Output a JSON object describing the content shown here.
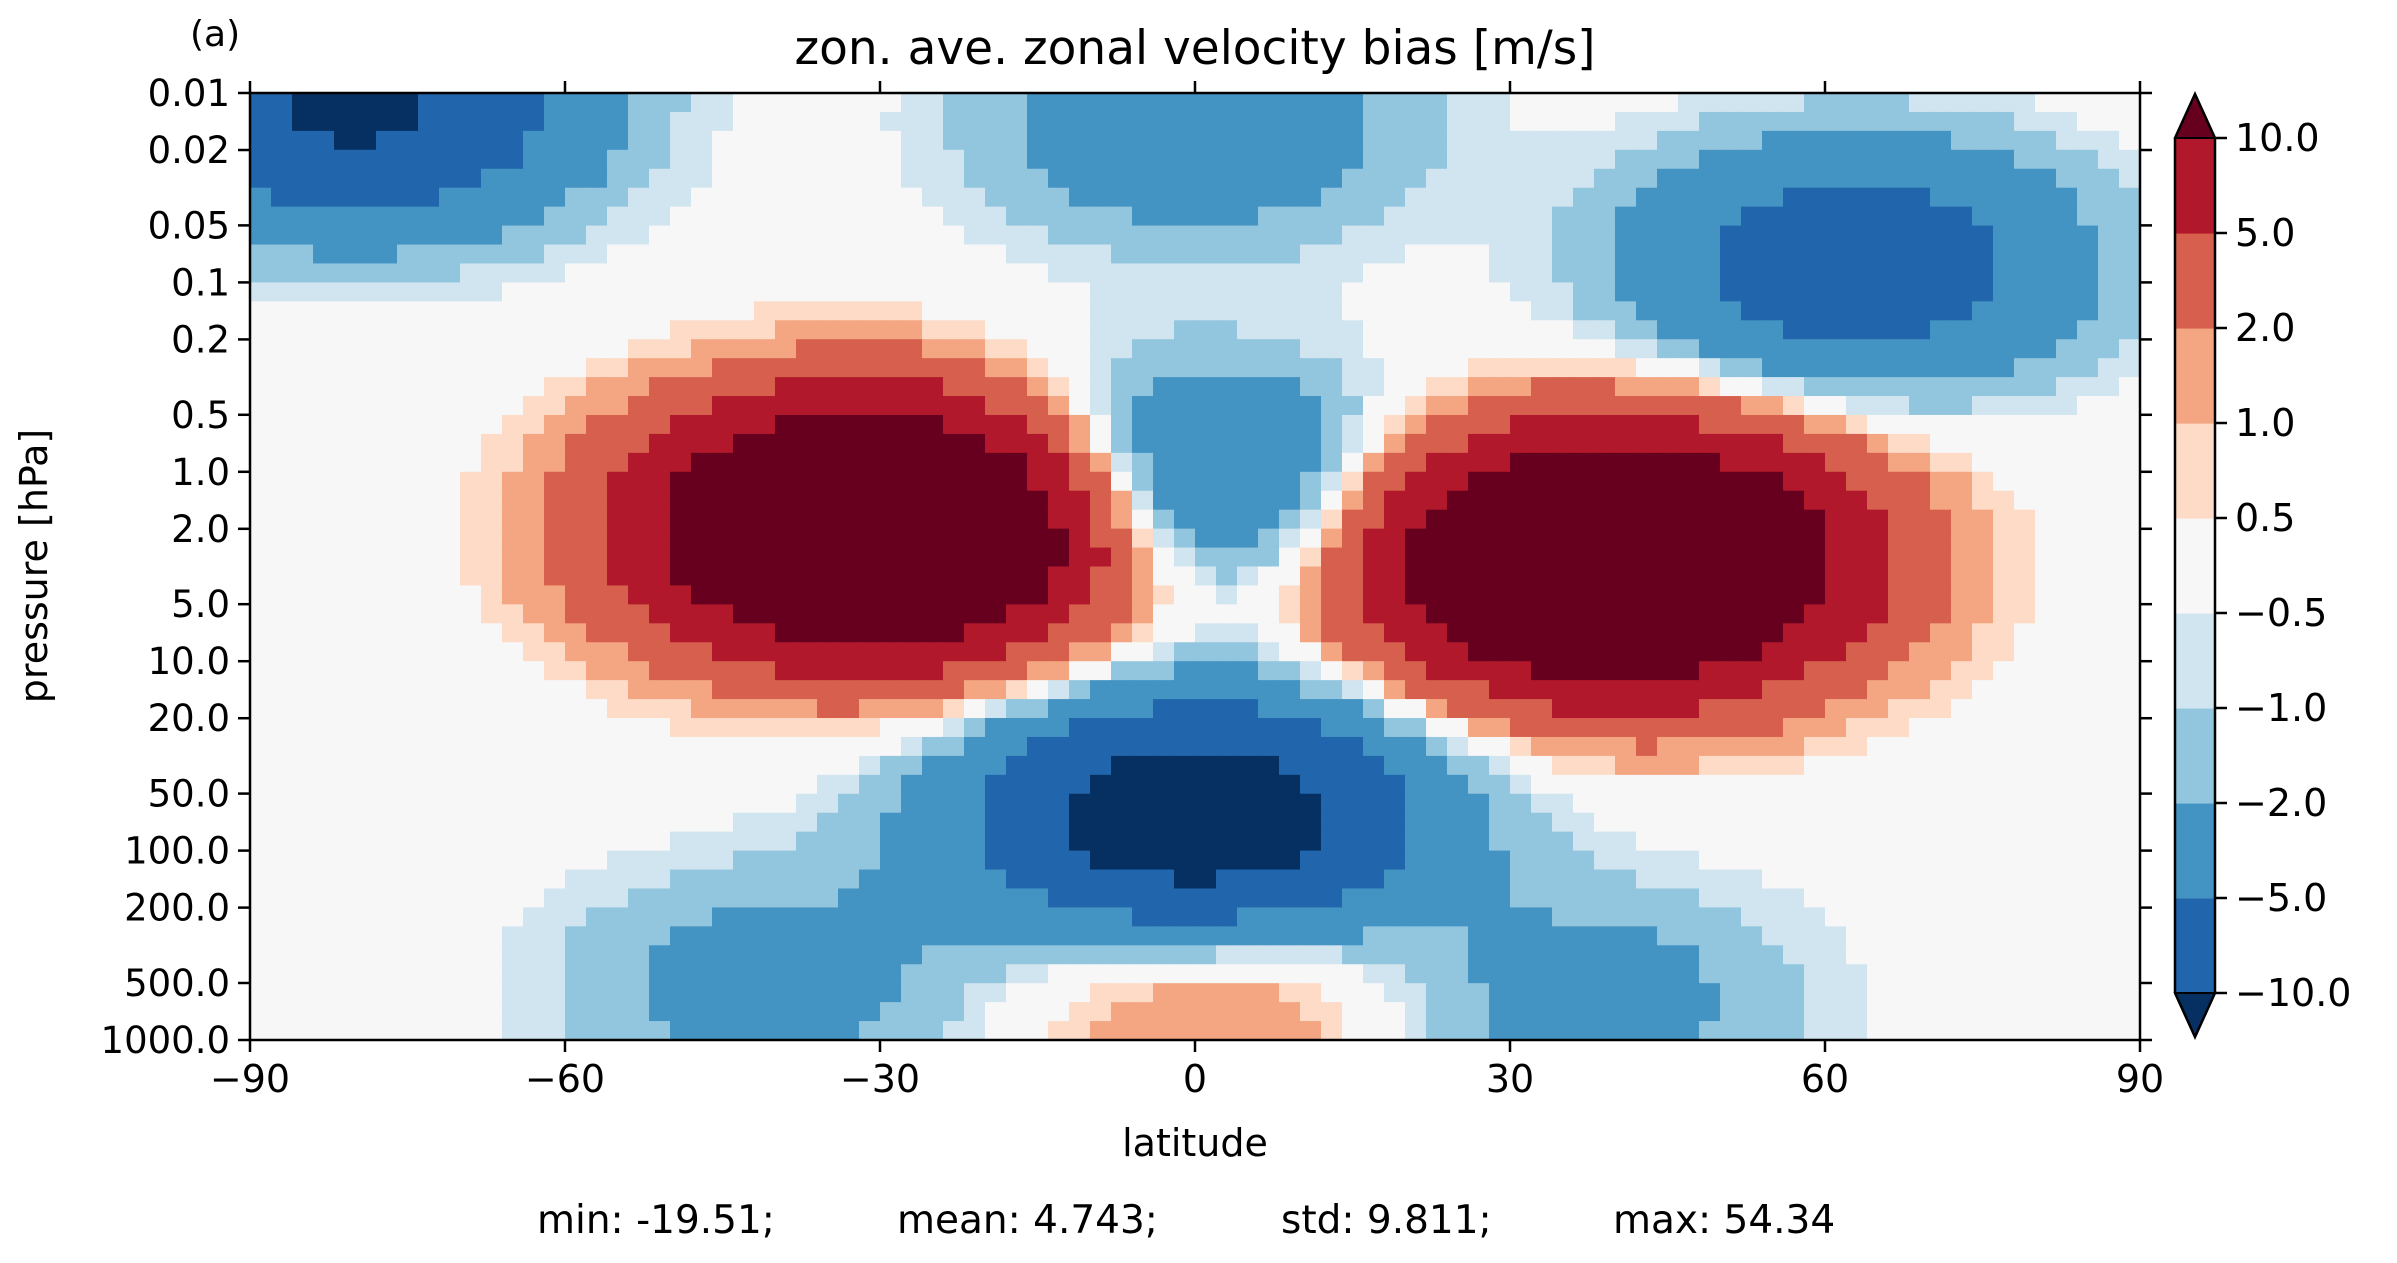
{
  "panel_label": "(a)",
  "stats": {
    "min": "min: -19.51;",
    "mean": "mean: 4.743;",
    "std": "std: 9.811;",
    "max": "max: 54.34"
  },
  "chart_data": {
    "type": "heatmap",
    "subtype": "filled-contour",
    "title": "zon. ave. zonal velocity bias [m/s]",
    "xlabel": "latitude",
    "ylabel": "pressure [hPa]",
    "xlim": [
      -90,
      90
    ],
    "ylim": [
      1000.0,
      0.01
    ],
    "y_scale": "log",
    "y_inverted": true,
    "x_ticks": [
      -90,
      -60,
      -30,
      0,
      30,
      60,
      90
    ],
    "x_tick_labels": [
      "−90",
      "−60",
      "−30",
      "0",
      "30",
      "60",
      "90"
    ],
    "y_ticks": [
      0.01,
      0.02,
      0.05,
      0.1,
      0.2,
      0.5,
      1.0,
      2.0,
      5.0,
      10.0,
      20.0,
      50.0,
      100.0,
      200.0,
      500.0,
      1000.0
    ],
    "y_tick_labels": [
      "0.01",
      "0.02",
      "0.05",
      "0.1",
      "0.2",
      "0.5",
      "1.0",
      "2.0",
      "5.0",
      "10.0",
      "20.0",
      "50.0",
      "100.0",
      "200.0",
      "500.0",
      "1000.0"
    ],
    "colorbar": {
      "levels": [
        -10.0,
        -5.0,
        -2.0,
        -1.0,
        -0.5,
        0.5,
        1.0,
        2.0,
        5.0,
        10.0
      ],
      "tick_labels": [
        "−10.0",
        "−5.0",
        "−2.0",
        "−1.0",
        "−0.5",
        "0.5",
        "1.0",
        "2.0",
        "5.0",
        "10.0"
      ],
      "extend": "both",
      "colors": [
        "#053061",
        "#2166ac",
        "#4393c3",
        "#92c5de",
        "#d1e5f0",
        "#f7f7f7",
        "#fddbc7",
        "#f4a582",
        "#d6604d",
        "#b2182b",
        "#67001f"
      ]
    },
    "field_features": [
      {
        "lat": 0,
        "p": 70,
        "value": -15
      },
      {
        "lat": -2,
        "p": 1.2,
        "value": -7
      },
      {
        "lat": -80,
        "p": 0.012,
        "value": -11
      },
      {
        "lat": 63,
        "p": 0.08,
        "value": -8
      },
      {
        "lat": -40,
        "p": 500,
        "value": -3
      },
      {
        "lat": 37,
        "p": 600,
        "value": -3
      },
      {
        "lat": 2,
        "p": 450,
        "value": 3
      },
      {
        "lat": -30,
        "p": 2,
        "value": 30
      },
      {
        "lat": 40,
        "p": 3,
        "value": 30
      },
      {
        "lat": 0,
        "p": 0.015,
        "value": -4
      }
    ]
  }
}
